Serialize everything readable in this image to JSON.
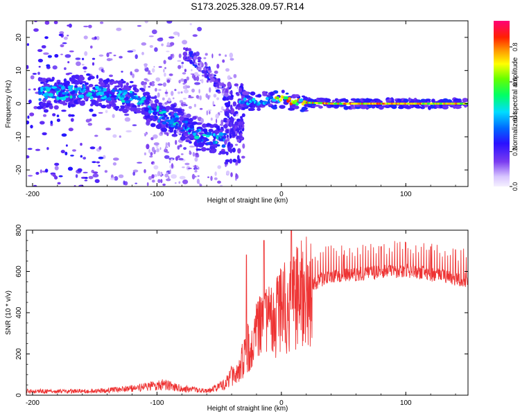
{
  "figure_title": "S173.2025.328.09.57.R14",
  "chart_data": [
    {
      "id": "spectrogram",
      "type": "heatmap",
      "title": "S173.2025.328.09.57.R14",
      "xlabel": "Height of straight line (km)",
      "ylabel": "Frequency (Hz)",
      "xlim": [
        -205,
        150
      ],
      "ylim": [
        -25,
        25
      ],
      "xticks": [
        -200,
        -100,
        0,
        100
      ],
      "xtick_labels": [
        "-200",
        "-100",
        "0",
        "100"
      ],
      "yticks": [
        -20,
        -10,
        0,
        10,
        20
      ],
      "ytick_labels": [
        "-20",
        "-10",
        "0",
        "10",
        "20"
      ],
      "colorbar": {
        "label": "Normalized spectral amplitude",
        "range": [
          0,
          0.95
        ],
        "ticks": [
          0,
          0.2,
          0.4,
          0.6,
          0.8
        ],
        "tick_labels": [
          "0.0",
          "0.2",
          "0.4",
          "0.6",
          "0.8"
        ]
      },
      "features": {
        "descending_branch_center_hz": [
          [
            -190,
            3
          ],
          [
            -160,
            4
          ],
          [
            -140,
            3
          ],
          [
            -120,
            2
          ],
          [
            -100,
            -3
          ],
          [
            -80,
            -6
          ],
          [
            -65,
            -10
          ],
          [
            -50,
            -11
          ]
        ],
        "faint_upper_branch_hz": [
          [
            -75,
            15
          ],
          [
            -60,
            10
          ],
          [
            -45,
            3
          ],
          [
            -40,
            -8
          ]
        ],
        "converged_line_hz": [
          [
            -35,
            1
          ],
          [
            -20,
            0.5
          ],
          [
            0,
            1.5
          ],
          [
            10,
            0.5
          ],
          [
            40,
            0
          ],
          [
            100,
            0
          ],
          [
            150,
            0
          ]
        ]
      }
    },
    {
      "id": "snr",
      "type": "line",
      "xlabel": "Height of straight line (km)",
      "ylabel": "SNR (10 * v/v)",
      "xlim": [
        -205,
        150
      ],
      "ylim": [
        0,
        800
      ],
      "xticks": [
        -200,
        -100,
        0,
        100
      ],
      "xtick_labels": [
        "-200",
        "-100",
        "0",
        "100"
      ],
      "yticks": [
        0,
        200,
        400,
        600,
        800
      ],
      "ytick_labels": [
        "0",
        "200",
        "400",
        "600",
        "800"
      ],
      "series": [
        {
          "name": "SNR",
          "color": "#ee3333",
          "envelope": [
            [
              -205,
              15
            ],
            [
              -150,
              15
            ],
            [
              -120,
              25
            ],
            [
              -95,
              40
            ],
            [
              -80,
              25
            ],
            [
              -60,
              15
            ],
            [
              -45,
              40
            ],
            [
              -35,
              120
            ],
            [
              -25,
              250
            ],
            [
              -15,
              330
            ],
            [
              -5,
              370
            ],
            [
              5,
              450
            ],
            [
              10,
              470
            ],
            [
              20,
              500
            ],
            [
              30,
              560
            ],
            [
              40,
              580
            ],
            [
              60,
              590
            ],
            [
              80,
              600
            ],
            [
              100,
              610
            ],
            [
              120,
              590
            ],
            [
              150,
              560
            ]
          ],
          "peaks": [
            [
              -28,
              680
            ],
            [
              -14,
              750
            ],
            [
              8,
              810
            ],
            [
              25,
              660
            ],
            [
              50,
              680
            ],
            [
              80,
              720
            ],
            [
              100,
              740
            ],
            [
              120,
              720
            ],
            [
              140,
              705
            ]
          ]
        }
      ]
    }
  ]
}
